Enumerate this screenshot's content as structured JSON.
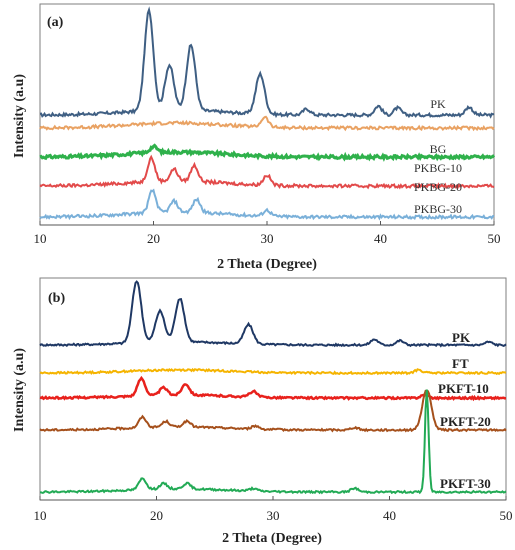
{
  "chart_data": [
    {
      "type": "line",
      "panel_label": "(a)",
      "xlabel": "2 Theta (Degree)",
      "ylabel": "Intensity (a.u)",
      "xlim": [
        10,
        50
      ],
      "xticks": [
        "10",
        "20",
        "30",
        "40",
        "50"
      ],
      "grid": false,
      "series": [
        {
          "name": "PK",
          "color": "#3f5f83",
          "peaks": [
            [
              19.6,
              1.0
            ],
            [
              21.4,
              0.45
            ],
            [
              23.3,
              0.65
            ],
            [
              29.4,
              0.4
            ],
            [
              33.5,
              0.06
            ],
            [
              39.8,
              0.09
            ],
            [
              41.5,
              0.07
            ],
            [
              47.8,
              0.08
            ]
          ]
        },
        {
          "name": "BG",
          "color": "#e9a263",
          "peaks": [
            [
              29.8,
              0.1
            ]
          ]
        },
        {
          "name": "PKBG-10",
          "color": "#2fb14b",
          "peaks": [
            [
              20.0,
              0.06
            ]
          ]
        },
        {
          "name": "PKBG-20",
          "color": "#e24a4a",
          "peaks": [
            [
              19.8,
              0.24
            ],
            [
              21.8,
              0.12
            ],
            [
              23.6,
              0.16
            ],
            [
              30.0,
              0.1
            ]
          ]
        },
        {
          "name": "PKBG-30",
          "color": "#7ab0d9",
          "peaks": [
            [
              19.9,
              0.22
            ],
            [
              21.8,
              0.11
            ],
            [
              23.8,
              0.13
            ],
            [
              30.0,
              0.06
            ]
          ]
        }
      ]
    },
    {
      "type": "line",
      "panel_label": "(b)",
      "xlabel": "2 Theta (Degree)",
      "ylabel": "Intensity (a.u)",
      "xlim": [
        10,
        50
      ],
      "xticks": [
        "10",
        "20",
        "30",
        "40",
        "50"
      ],
      "grid": false,
      "series": [
        {
          "name": "PK",
          "color": "#1f3864",
          "peaks": [
            [
              18.3,
              1.0
            ],
            [
              20.3,
              0.5
            ],
            [
              22.0,
              0.7
            ],
            [
              27.9,
              0.31
            ],
            [
              38.7,
              0.09
            ],
            [
              40.9,
              0.07
            ],
            [
              48.5,
              0.05
            ]
          ]
        },
        {
          "name": "FT",
          "color": "#f5b400",
          "peaks": [
            [
              42.5,
              0.05
            ]
          ]
        },
        {
          "name": "PKFT-10",
          "color": "#e8211c",
          "peaks": [
            [
              18.7,
              0.28
            ],
            [
              20.6,
              0.12
            ],
            [
              22.5,
              0.18
            ],
            [
              28.3,
              0.09
            ],
            [
              43.0,
              0.05
            ]
          ]
        },
        {
          "name": "PKFT-20",
          "color": "#a5501c",
          "peaks": [
            [
              18.8,
              0.17
            ],
            [
              20.8,
              0.09
            ],
            [
              22.6,
              0.09
            ],
            [
              28.5,
              0.05
            ],
            [
              37.0,
              0.04
            ],
            [
              43.2,
              0.65
            ]
          ]
        },
        {
          "name": "PKFT-30",
          "color": "#22aa55",
          "peaks": [
            [
              18.8,
              0.18
            ],
            [
              20.6,
              0.09
            ],
            [
              22.6,
              0.09
            ],
            [
              28.3,
              0.04
            ],
            [
              37.0,
              0.06
            ],
            [
              43.2,
              1.65
            ]
          ]
        }
      ]
    }
  ]
}
